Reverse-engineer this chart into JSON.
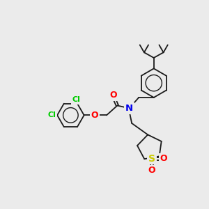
{
  "background_color": "#ebebeb",
  "bond_color": "#1a1a1a",
  "atom_colors": {
    "Cl": "#00cc00",
    "O": "#ff0000",
    "N": "#0000ee",
    "S": "#cccc00",
    "C": "#1a1a1a"
  },
  "figsize": [
    3.0,
    3.0
  ],
  "dpi": 100
}
